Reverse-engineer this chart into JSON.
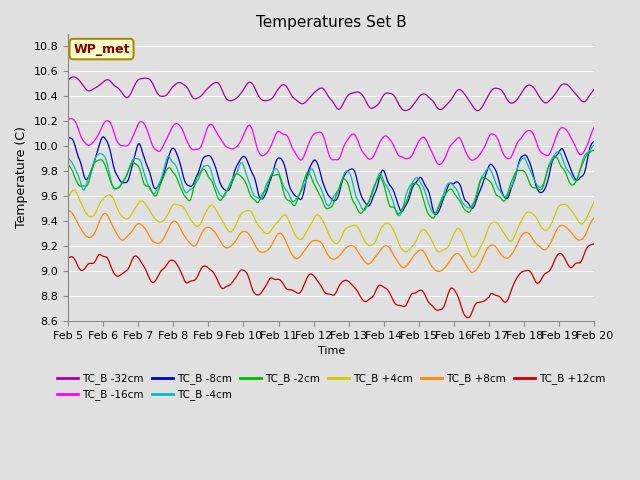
{
  "title": "Temperatures Set B",
  "xlabel": "Time",
  "ylabel": "Temperature (C)",
  "ylim": [
    8.6,
    10.9
  ],
  "xlim": [
    0,
    360
  ],
  "x_tick_labels": [
    "Feb 5",
    "Feb 6",
    "Feb 7",
    "Feb 8",
    "Feb 9",
    "Feb 10",
    "Feb 11",
    "Feb 12",
    "Feb 13",
    "Feb 14",
    "Feb 15",
    "Feb 16",
    "Feb 17",
    "Feb 18",
    "Feb 19",
    "Feb 20"
  ],
  "x_tick_positions": [
    0,
    24,
    48,
    72,
    96,
    120,
    144,
    168,
    192,
    216,
    240,
    264,
    288,
    312,
    336,
    360
  ],
  "background_color": "#e0e0e0",
  "plot_bg_color": "#e0e0e0",
  "grid_color": "#ffffff",
  "wp_met_box_color": "#ffffcc",
  "wp_met_text_color": "#880000",
  "series": [
    {
      "label": "TC_B -32cm",
      "color": "#aa00aa"
    },
    {
      "label": "TC_B -16cm",
      "color": "#ff00ff"
    },
    {
      "label": "TC_B -8cm",
      "color": "#0000cc"
    },
    {
      "label": "TC_B -4cm",
      "color": "#00bbbb"
    },
    {
      "label": "TC_B -2cm",
      "color": "#00bb00"
    },
    {
      "label": "TC_B +4cm",
      "color": "#cccc00"
    },
    {
      "label": "TC_B +8cm",
      "color": "#ff8800"
    },
    {
      "label": "TC_B +12cm",
      "color": "#cc0000"
    }
  ]
}
